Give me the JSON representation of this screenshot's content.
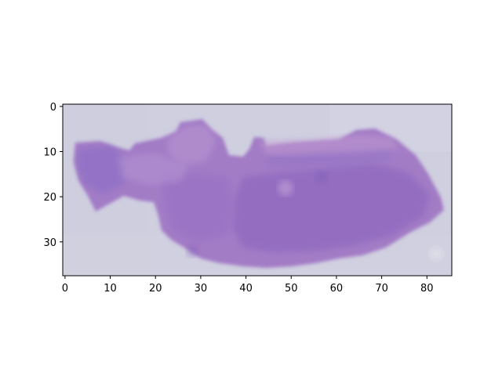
{
  "figure": {
    "x_ticks": [
      "0",
      "10",
      "20",
      "30",
      "40",
      "50",
      "60",
      "70",
      "80"
    ],
    "y_ticks": [
      "0",
      "10",
      "20",
      "30"
    ],
    "x_range": [
      -0.5,
      85.5
    ],
    "y_range": [
      37.5,
      -0.5
    ],
    "image_size": [
      86,
      38
    ],
    "content": "purple H&E-stained tissue section on pale lavender background",
    "colors": {
      "background": "#cfcfe0",
      "tissue": "#a37bc6",
      "tissue_dark": "#8f69bf",
      "tissue_light": "#b89ad3"
    }
  }
}
